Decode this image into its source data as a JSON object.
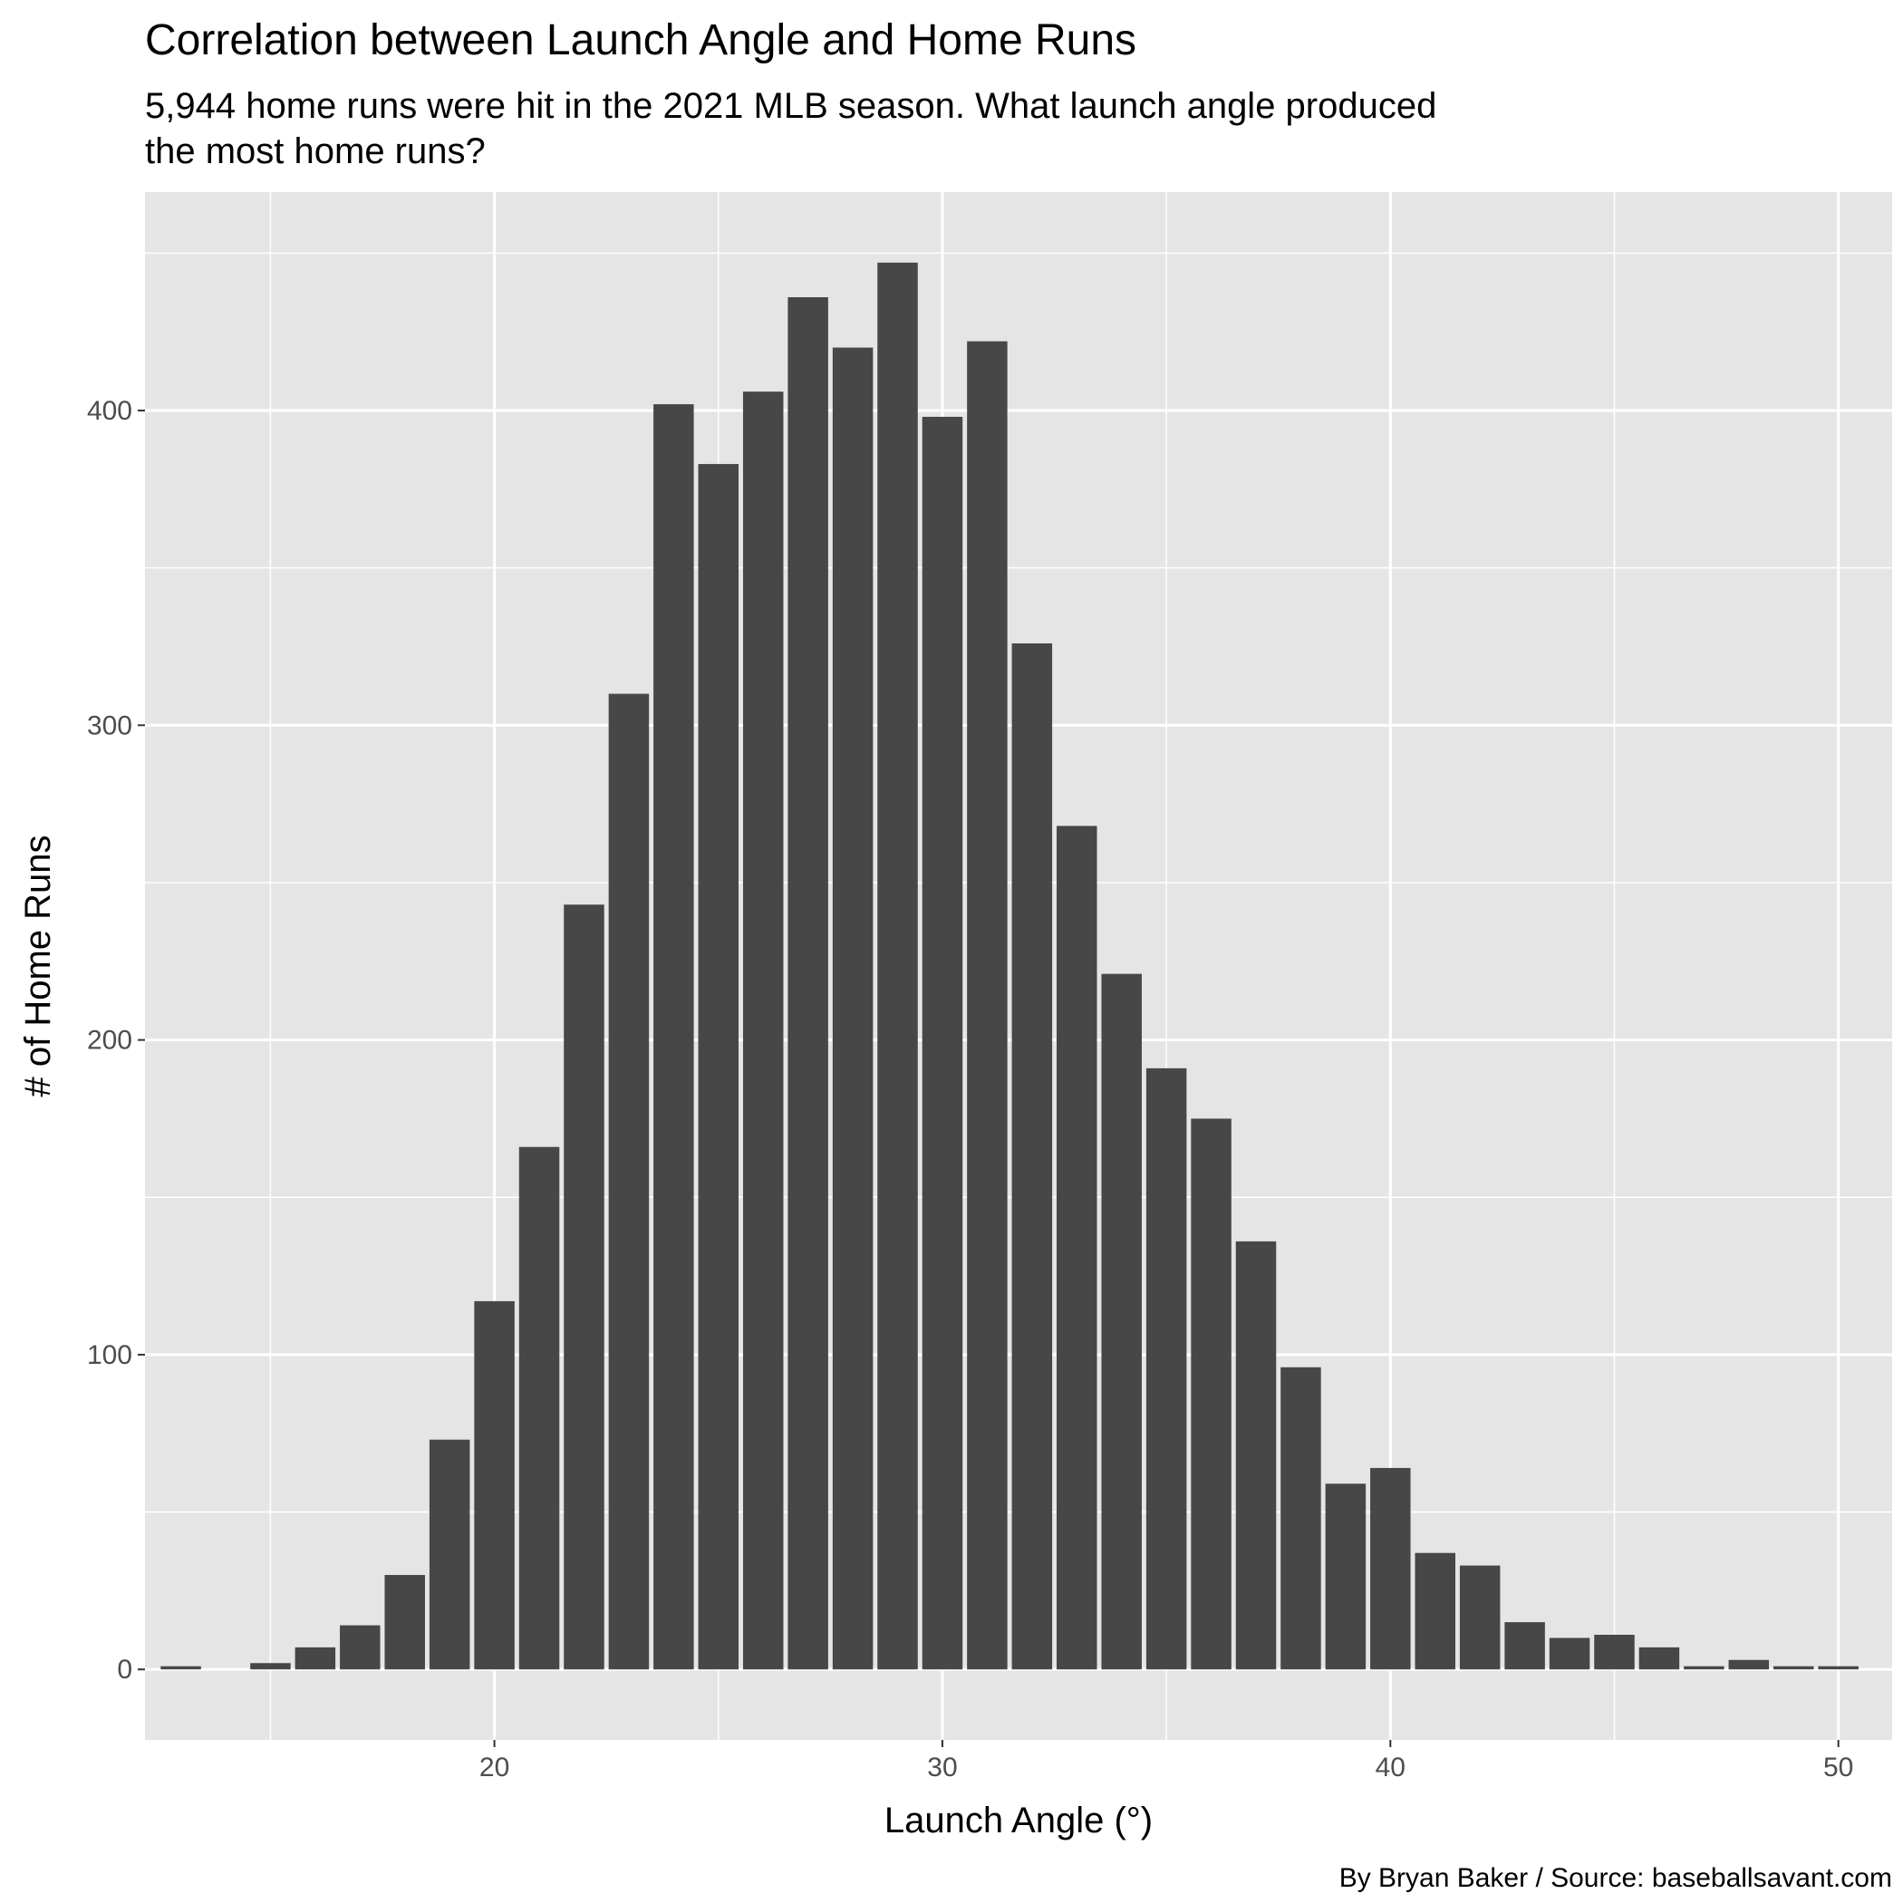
{
  "chart_data": {
    "type": "bar",
    "title": "Correlation between Launch Angle and Home Runs",
    "subtitle_lines": [
      "5,944 home runs were hit in the 2021 MLB season. What launch angle produced",
      "the most home runs?"
    ],
    "xlabel": "Launch Angle (°)",
    "ylabel": "# of Home Runs",
    "caption": "By Bryan Baker / Source: baseballsavant.com",
    "x": [
      13,
      15,
      16,
      17,
      18,
      19,
      20,
      21,
      22,
      23,
      24,
      25,
      26,
      27,
      28,
      29,
      30,
      31,
      32,
      33,
      34,
      35,
      36,
      37,
      38,
      39,
      40,
      41,
      42,
      43,
      44,
      45,
      46,
      47,
      48,
      49,
      50
    ],
    "values": [
      1,
      2,
      7,
      14,
      30,
      73,
      117,
      166,
      243,
      310,
      402,
      383,
      406,
      436,
      420,
      447,
      398,
      422,
      326,
      268,
      221,
      191,
      175,
      136,
      96,
      59,
      64,
      37,
      33,
      15,
      10,
      11,
      7,
      1,
      3,
      1,
      1
    ],
    "xlim": [
      12.2,
      51.2
    ],
    "ylim": [
      -22.4,
      469.4
    ],
    "x_ticks": [
      20,
      30,
      40,
      50
    ],
    "y_ticks": [
      0,
      100,
      200,
      300,
      400
    ],
    "grid": true,
    "colors": {
      "bar": "#474747",
      "panel": "#e5e5e5",
      "grid": "#ffffff"
    }
  }
}
